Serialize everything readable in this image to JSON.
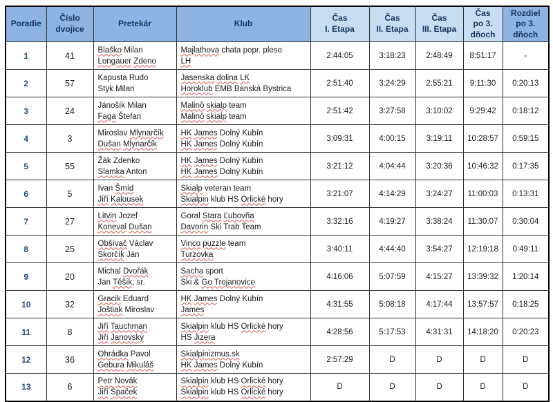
{
  "table": {
    "headers": [
      "Poradie",
      "Číslo\ndvojice",
      "Pretekár",
      "Klub",
      "Čas\nI. Etapa",
      "Čas\nII. Etapa",
      "Čas\nIII. Etapa",
      "Čas\npo 3.\ndňoch",
      "Rozdiel\npo 3.\ndňoch"
    ],
    "rows": [
      {
        "rank": "1",
        "pair_number": "41",
        "competitors": [
          {
            "text": "Blaško Milan",
            "misspelled": [
              "Blaško"
            ]
          },
          {
            "text": "Longauer Zdeno",
            "misspelled": [
              "Longauer",
              "Zdeno"
            ]
          }
        ],
        "club": [
          {
            "text": "Majlathova chata popr. pleso",
            "misspelled": [
              "Majlathova"
            ]
          },
          {
            "text": "LH",
            "misspelled": [
              "LH"
            ]
          }
        ],
        "times": [
          "2:44:05",
          "3:18:23",
          "2:48:49",
          "8:51:17",
          "-"
        ]
      },
      {
        "rank": "2",
        "pair_number": "57",
        "competitors": [
          {
            "text": "Kapusta Rudo",
            "misspelled": []
          },
          {
            "text": "Styk Milan",
            "misspelled": []
          }
        ],
        "club": [
          {
            "text": "Jasenska dolina LK",
            "misspelled": [
              "Jasenska",
              "dolina",
              "LK"
            ]
          },
          {
            "text": "Horoklub EMB Banská Bystrica",
            "misspelled": [
              "Horoklub"
            ]
          }
        ],
        "times": [
          "2:51:40",
          "3:24:29",
          "2:55:21",
          "9:11:30",
          "0:20:13"
        ]
      },
      {
        "rank": "3",
        "pair_number": "24",
        "competitors": [
          {
            "text": "Jánošík Milan",
            "misspelled": []
          },
          {
            "text": "Faga Štefan",
            "misspelled": [
              "Faga"
            ]
          }
        ],
        "club": [
          {
            "text": "Malinô skialp team",
            "misspelled": [
              "Malinô",
              "skialp"
            ]
          },
          {
            "text": "Malinô skialp team",
            "misspelled": [
              "Malinô",
              "skialp"
            ]
          }
        ],
        "times": [
          "2:51:42",
          "3:27:58",
          "3:10:02",
          "9:29:42",
          "0:18:12"
        ]
      },
      {
        "rank": "4",
        "pair_number": "3",
        "competitors": [
          {
            "text": "Miroslav Mlynarčík",
            "misspelled": [
              "Mlynarčík"
            ]
          },
          {
            "text": "Dušan Mlynarčík",
            "misspelled": [
              "Dušan",
              "Mlynarčík"
            ]
          }
        ],
        "club": [
          {
            "text": "HK James Dolný Kubín",
            "misspelled": [
              "HK",
              "James"
            ]
          },
          {
            "text": "HK James Dolný Kubín",
            "misspelled": [
              "HK",
              "James"
            ]
          }
        ],
        "times": [
          "3:09:31",
          "4:00:15",
          "3:19:11",
          "10:28:57",
          "0:59:15"
        ]
      },
      {
        "rank": "5",
        "pair_number": "55",
        "competitors": [
          {
            "text": "Žák Zdenko",
            "misspelled": []
          },
          {
            "text": "Slamka Anton",
            "misspelled": [
              "Slamka"
            ]
          }
        ],
        "club": [
          {
            "text": "HK James Dolný Kubín",
            "misspelled": [
              "HK",
              "James"
            ]
          },
          {
            "text": "HK James Dolný Kubín",
            "misspelled": [
              "HK",
              "James"
            ]
          }
        ],
        "times": [
          "3:21:12",
          "4:04:44",
          "3:20:36",
          "10:46:32",
          "0:17:35"
        ]
      },
      {
        "rank": "6",
        "pair_number": "5",
        "competitors": [
          {
            "text": "Ivan Šmíd",
            "misspelled": [
              "Šmíd"
            ]
          },
          {
            "text": "Jiří Kalousek",
            "misspelled": [
              "Jiří",
              "Kalousek"
            ]
          }
        ],
        "club": [
          {
            "text": "Skialp veteran team",
            "misspelled": [
              "Skialp"
            ]
          },
          {
            "text": "Skialpin klub HS Orlické hory",
            "misspelled": [
              "Skialpin",
              "Orlické"
            ]
          }
        ],
        "times": [
          "3:21:07",
          "4:14:29",
          "3:24:27",
          "11:00:03",
          "0:13:31"
        ]
      },
      {
        "rank": "7",
        "pair_number": "27",
        "competitors": [
          {
            "text": "Litvin Jozef",
            "misspelled": [
              "Litvin"
            ]
          },
          {
            "text": "Koneval Dušan",
            "misspelled": [
              "Koneval",
              "Dušan"
            ]
          }
        ],
        "club": [
          {
            "text": "Goral Stara Ľubovňa",
            "misspelled": [
              "Stara",
              "Ľubovňa"
            ]
          },
          {
            "text": "Davorin Ski Trab Team",
            "misspelled": [
              "Davorin"
            ]
          }
        ],
        "times": [
          "3:32:16",
          "4:19:27",
          "3:38:24",
          "11:30:07",
          "0:30:04"
        ]
      },
      {
        "rank": "8",
        "pair_number": "25",
        "competitors": [
          {
            "text": "Obšívač Václav",
            "misspelled": [
              "Obšívač"
            ]
          },
          {
            "text": "Skorčík Ján",
            "misspelled": [
              "Skorčík"
            ]
          }
        ],
        "club": [
          {
            "text": "Vinco puzzle team",
            "misspelled": [
              "Vinco",
              "puzzle"
            ]
          },
          {
            "text": "Turzovka",
            "misspelled": [
              "Turzovka"
            ]
          }
        ],
        "times": [
          "3:40:11",
          "4:44:40",
          "3:54:27",
          "12:19:18",
          "0:49:11"
        ]
      },
      {
        "rank": "9",
        "pair_number": "20",
        "competitors": [
          {
            "text": "Michal Dvořák",
            "misspelled": [
              "Dvořák"
            ]
          },
          {
            "text": "Jan Těšík, sr.",
            "misspelled": [
              "Těšík"
            ]
          }
        ],
        "club": [
          {
            "text": "Sacha sport",
            "misspelled": [
              "Sacha"
            ]
          },
          {
            "text": "Ski & Go Trojanovice",
            "misspelled": [
              "Go Trojanovice"
            ]
          }
        ],
        "times": [
          "4:16:06",
          "5:07:59",
          "4:15:27",
          "13:39:32",
          "1:20:14"
        ]
      },
      {
        "rank": "10",
        "pair_number": "32",
        "competitors": [
          {
            "text": "Gracik Eduard",
            "misspelled": [
              "Gracik"
            ]
          },
          {
            "text": "Joštiak Miroslav",
            "misspelled": [
              "Joštiak"
            ]
          }
        ],
        "club": [
          {
            "text": "HK James Dolný Kubín",
            "misspelled": [
              "HK",
              "James"
            ]
          },
          {
            "text": "James",
            "misspelled": [
              "James"
            ]
          }
        ],
        "times": [
          "4:31:55",
          "5:08:18",
          "4:17:44",
          "13:57:57",
          "0:18:25"
        ]
      },
      {
        "rank": "11",
        "pair_number": "8",
        "competitors": [
          {
            "text": "Jiří Tauchman",
            "misspelled": [
              "Jiří",
              "Tauchman"
            ]
          },
          {
            "text": "Jiří Janovský",
            "misspelled": [
              "Jiří",
              "Janovský"
            ]
          }
        ],
        "club": [
          {
            "text": "Skialpin klub HS Orlické hory",
            "misspelled": [
              "Skialpin",
              "Orlické"
            ]
          },
          {
            "text": "HS Jizera",
            "misspelled": [
              "Jizera"
            ]
          }
        ],
        "times": [
          "4:28:56",
          "5:17:53",
          "4:31:31",
          "14:18:20",
          "0:20:23"
        ]
      },
      {
        "rank": "12",
        "pair_number": "36",
        "competitors": [
          {
            "text": "Ohrádka Pavol",
            "misspelled": [
              "Ohrádka"
            ]
          },
          {
            "text": "Gebura Mikuláš",
            "misspelled": [
              "Gebura",
              "Mikuláš"
            ]
          }
        ],
        "club": [
          {
            "text": "Skialpinizmus.sk",
            "misspelled": [
              "Skialpinizmus.sk"
            ]
          },
          {
            "text": "HK James Dolný Kubín",
            "misspelled": [
              "HK",
              "James"
            ]
          }
        ],
        "times": [
          "2:57:29",
          "D",
          "D",
          "D",
          "D"
        ]
      },
      {
        "rank": "13",
        "pair_number": "6",
        "competitors": [
          {
            "text": "Petr Novák",
            "misspelled": [
              "Petr",
              "Novák"
            ]
          },
          {
            "text": "Jiří Špaček",
            "misspelled": [
              "Jiří",
              "Špaček"
            ]
          }
        ],
        "club": [
          {
            "text": "Skialpin klub HS Orlické hory",
            "misspelled": [
              "Skialpin",
              "Orlické"
            ]
          },
          {
            "text": "Skialpin klub HS Orlické hory",
            "misspelled": [
              "Skialpin",
              "Orlické"
            ]
          }
        ],
        "times": [
          "D",
          "D",
          "D",
          "D",
          "D"
        ]
      }
    ]
  },
  "colors": {
    "header_mid": "#8db4e2",
    "header_light": "#c7ddf2",
    "header_text": "#17365d",
    "rank_text": "#1f497d",
    "squiggle": "#d75a4a",
    "grid": "#2e2e2e"
  }
}
